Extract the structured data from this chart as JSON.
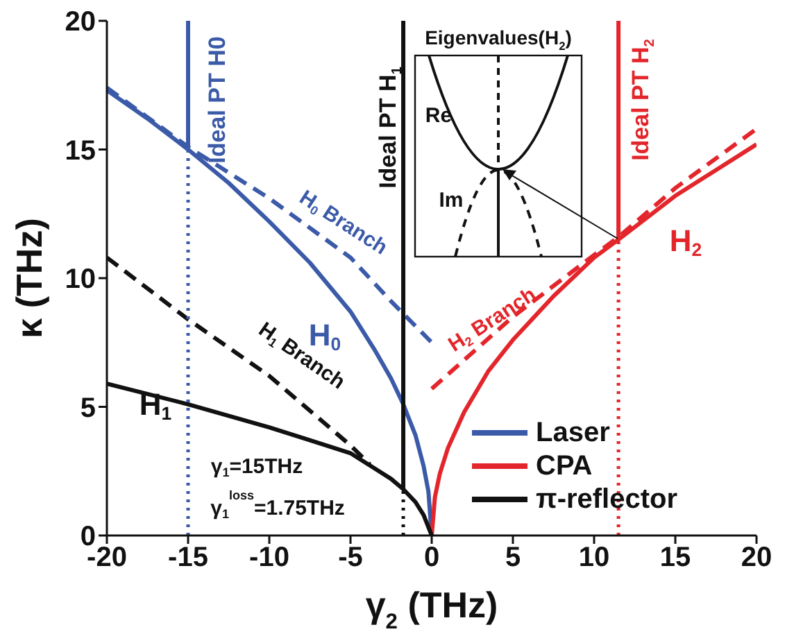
{
  "chart_data": [
    {
      "type": "line",
      "xlabel": "γ$_{2}$ (THz)",
      "ylabel": "κ (THz)",
      "xlim": [
        -20,
        20
      ],
      "ylim": [
        0,
        20
      ],
      "xticks": [
        -20,
        -15,
        -10,
        -5,
        0,
        5,
        10,
        15,
        20
      ],
      "yticks": [
        0,
        5,
        10,
        15,
        20
      ],
      "legend": "bottom right",
      "series": [
        {
          "name": "Laser",
          "color": "#3b5aa8",
          "line_style": "solid",
          "x": [
            -20,
            -17.5,
            -15,
            -12.5,
            -10,
            -7.5,
            -5,
            -3.5,
            -2.5,
            -1.75,
            -1,
            -0.5,
            -0.2,
            0
          ],
          "values": [
            17.3,
            16.2,
            15.0,
            13.7,
            12.2,
            10.6,
            8.7,
            7.2,
            6.1,
            5.1,
            3.9,
            2.7,
            1.7,
            0
          ]
        },
        {
          "name": "CPA",
          "color": "#e3262b",
          "line_style": "solid",
          "x": [
            0,
            0.2,
            0.5,
            1,
            2,
            3.5,
            5,
            7.5,
            10,
            11.5,
            15,
            17.5,
            20
          ],
          "values": [
            0,
            1.5,
            2.4,
            3.4,
            4.8,
            6.4,
            7.6,
            9.3,
            10.8,
            11.5,
            13.2,
            14.2,
            15.2
          ]
        },
        {
          "name": "π-reflector",
          "color": "#111111",
          "line_style": "solid",
          "x": [
            -20,
            -15,
            -10,
            -7.5,
            -5,
            -3.5,
            -2.5,
            -1.75,
            -1,
            -0.5,
            0
          ],
          "values": [
            5.9,
            5.1,
            4.2,
            3.7,
            3.2,
            2.6,
            2.2,
            1.8,
            1.3,
            0.8,
            0
          ]
        },
        {
          "color": "#3b5aa8",
          "line_style": "dashed",
          "x": [
            -20,
            -15,
            -10,
            -5,
            -2.5,
            0
          ],
          "values": [
            17.4,
            15.1,
            13.1,
            10.8,
            9.1,
            7.5
          ]
        },
        {
          "color": "#111111",
          "line_style": "dashed",
          "x": [
            -20,
            -15,
            -10,
            -5,
            -3.8
          ],
          "values": [
            10.8,
            8.4,
            6.2,
            3.5,
            2.75
          ]
        },
        {
          "color": "#e3262b",
          "line_style": "dashed",
          "x": [
            0,
            5,
            10,
            11.5,
            15,
            20
          ],
          "values": [
            5.7,
            8.5,
            10.9,
            11.6,
            13.5,
            15.8
          ]
        },
        {
          "color": "#3b5aa8",
          "line_style": "solid",
          "x": [
            -15,
            -15
          ],
          "values": [
            15,
            20
          ]
        },
        {
          "color": "#3b5aa8",
          "line_style": "dotted",
          "x": [
            -15,
            -15
          ],
          "values": [
            0,
            15
          ]
        },
        {
          "color": "#111111",
          "line_style": "solid",
          "x": [
            -1.75,
            -1.75
          ],
          "values": [
            1.8,
            20
          ]
        },
        {
          "color": "#111111",
          "line_style": "dotted",
          "x": [
            -1.75,
            -1.75
          ],
          "values": [
            0,
            1.8
          ]
        },
        {
          "color": "#e3262b",
          "line_style": "solid",
          "x": [
            11.5,
            11.5
          ],
          "values": [
            11.5,
            20
          ]
        },
        {
          "color": "#e3262b",
          "line_style": "dotted",
          "x": [
            11.5,
            11.5
          ],
          "values": [
            0,
            11.5
          ]
        }
      ],
      "annotations": [
        "Ideal PT H0",
        "Ideal PT H$_{1}$",
        "Ideal PT H$_{2}$",
        "H$_{0}$ Branch",
        "H$_{0}$",
        "H$_{1}$ Branch",
        "H$_{1}$",
        "H$_{2}$ Branch",
        "H$_{2}$",
        "γ$_{1}$=15THz",
        "γ$_{1}$$^{loss}$=1.75THz"
      ]
    },
    {
      "type": "other",
      "title": "Eigenvalues(H$_{2}$)",
      "annotations": [
        "Re",
        "Im"
      ]
    }
  ]
}
